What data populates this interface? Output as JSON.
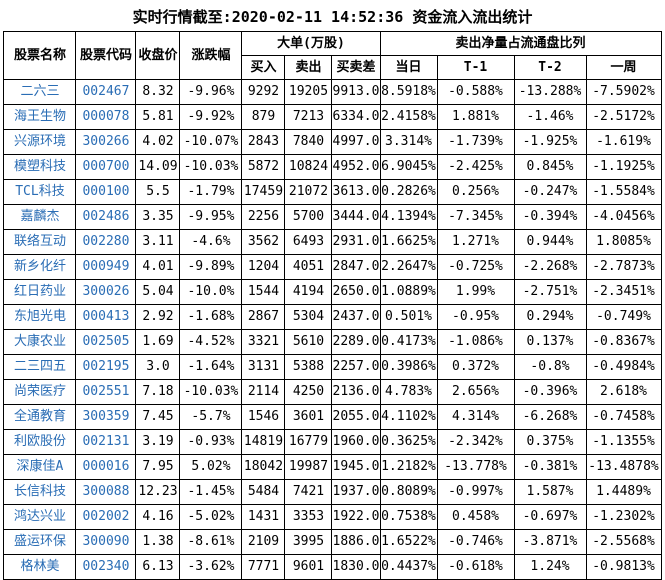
{
  "colors": {
    "stock_link_blue": "#2a6db5",
    "grid_border": "#000000",
    "background": "#ffffff",
    "text": "#000000"
  },
  "chart_data": {
    "type": "table",
    "title": "实时行情截至:2020-02-11 14:52:36 资金流入流出统计",
    "column_groups": [
      {
        "label": "大单(万股)",
        "span": [
          "买入",
          "卖出",
          "买卖差"
        ]
      },
      {
        "label": "卖出净量占流通盘比列",
        "span": [
          "当日",
          "T-1",
          "T-2",
          "一周"
        ]
      }
    ],
    "columns": [
      "股票名称",
      "股票代码",
      "收盘价",
      "涨跌幅",
      "买入",
      "卖出",
      "买卖差",
      "当日",
      "T-1",
      "T-2",
      "一周"
    ],
    "rows": [
      [
        "二六三",
        "002467",
        "8.32",
        "-9.96%",
        "9292",
        "19205",
        "9913.0",
        "8.5918%",
        "-0.588%",
        "-13.288%",
        "-7.5902%"
      ],
      [
        "海王生物",
        "000078",
        "5.81",
        "-9.92%",
        "879",
        "7213",
        "6334.0",
        "2.4158%",
        "1.881%",
        "-1.46%",
        "-2.5172%"
      ],
      [
        "兴源环境",
        "300266",
        "4.02",
        "-10.07%",
        "2843",
        "7840",
        "4997.0",
        "3.314%",
        "-1.739%",
        "-1.925%",
        "-1.619%"
      ],
      [
        "模塑科技",
        "000700",
        "14.09",
        "-10.03%",
        "5872",
        "10824",
        "4952.0",
        "6.9045%",
        "-2.425%",
        "0.845%",
        "-1.1925%"
      ],
      [
        "TCL科技",
        "000100",
        "5.5",
        "-1.79%",
        "17459",
        "21072",
        "3613.0",
        "0.2826%",
        "0.256%",
        "-0.247%",
        "-1.5584%"
      ],
      [
        "嘉麟杰",
        "002486",
        "3.35",
        "-9.95%",
        "2256",
        "5700",
        "3444.0",
        "4.1394%",
        "-7.345%",
        "-0.394%",
        "-4.0456%"
      ],
      [
        "联络互动",
        "002280",
        "3.11",
        "-4.6%",
        "3562",
        "6493",
        "2931.0",
        "1.6625%",
        "1.271%",
        "0.944%",
        "1.8085%"
      ],
      [
        "新乡化纤",
        "000949",
        "4.01",
        "-9.89%",
        "1204",
        "4051",
        "2847.0",
        "2.2647%",
        "-0.725%",
        "-2.268%",
        "-2.7873%"
      ],
      [
        "红日药业",
        "300026",
        "5.04",
        "-10.0%",
        "1544",
        "4194",
        "2650.0",
        "1.0889%",
        "1.99%",
        "-2.751%",
        "-2.3451%"
      ],
      [
        "东旭光电",
        "000413",
        "2.92",
        "-1.68%",
        "2867",
        "5304",
        "2437.0",
        "0.501%",
        "-0.95%",
        "0.294%",
        "-0.749%"
      ],
      [
        "大康农业",
        "002505",
        "1.69",
        "-4.52%",
        "3321",
        "5610",
        "2289.0",
        "0.4173%",
        "-1.086%",
        "0.137%",
        "-0.8367%"
      ],
      [
        "二三四五",
        "002195",
        "3.0",
        "-1.64%",
        "3131",
        "5388",
        "2257.0",
        "0.3986%",
        "0.372%",
        "-0.8%",
        "-0.4984%"
      ],
      [
        "尚荣医疗",
        "002551",
        "7.18",
        "-10.03%",
        "2114",
        "4250",
        "2136.0",
        "4.783%",
        "2.656%",
        "-0.396%",
        "2.618%"
      ],
      [
        "全通教育",
        "300359",
        "7.45",
        "-5.7%",
        "1546",
        "3601",
        "2055.0",
        "4.1102%",
        "4.314%",
        "-6.268%",
        "-0.7458%"
      ],
      [
        "利欧股份",
        "002131",
        "3.19",
        "-0.93%",
        "14819",
        "16779",
        "1960.0",
        "0.3625%",
        "-2.342%",
        "0.375%",
        "-1.1355%"
      ],
      [
        "深康佳A",
        "000016",
        "7.95",
        "5.02%",
        "18042",
        "19987",
        "1945.0",
        "1.2182%",
        "-13.778%",
        "-0.381%",
        "-13.4878%"
      ],
      [
        "长信科技",
        "300088",
        "12.23",
        "-1.45%",
        "5484",
        "7421",
        "1937.0",
        "0.8089%",
        "-0.997%",
        "1.587%",
        "1.4489%"
      ],
      [
        "鸿达兴业",
        "002002",
        "4.16",
        "-5.02%",
        "1431",
        "3353",
        "1922.0",
        "0.7538%",
        "0.458%",
        "-0.697%",
        "-1.2302%"
      ],
      [
        "盛运环保",
        "300090",
        "1.38",
        "-8.61%",
        "2109",
        "3995",
        "1886.0",
        "1.6522%",
        "-0.746%",
        "-3.871%",
        "-2.5568%"
      ],
      [
        "格林美",
        "002340",
        "6.13",
        "-3.62%",
        "7771",
        "9601",
        "1830.0",
        "0.4437%",
        "-0.618%",
        "1.24%",
        "-0.9813%"
      ]
    ]
  }
}
